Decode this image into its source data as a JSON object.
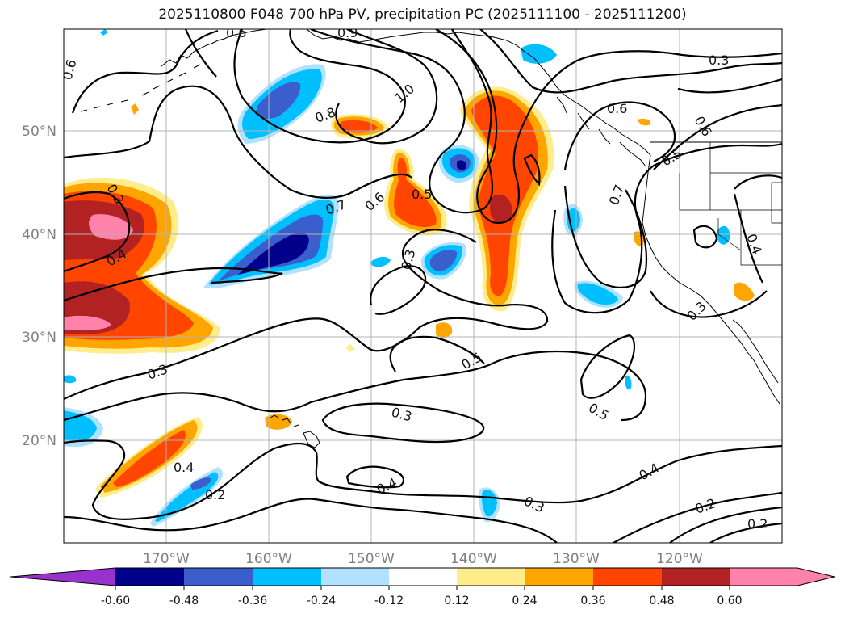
{
  "title": "2025110800 F048 700 hPa PV, precipitation PC (2025111100 - 2025111200)",
  "colors": {
    "grid": "#b4b4b4",
    "tick": "#7f7f7f",
    "contour": "#000000",
    "c_n72": "#9932cc",
    "c_n60": "#00008b",
    "c_n48": "#3a5fcd",
    "c_n36": "#00bfff",
    "c_n24": "#b0e2ff",
    "c_n12": "#ffffff",
    "c_p12": "#ffec8b",
    "c_p24": "#ffa500",
    "c_p36": "#ff4500",
    "c_p48": "#b22222",
    "c_p60": "#ff82ab"
  },
  "map": {
    "lon_labels": [
      "170°W",
      "160°W",
      "150°W",
      "140°W",
      "130°W",
      "120°W"
    ],
    "lat_labels": [
      "50°N",
      "40°N",
      "30°N",
      "20°N"
    ]
  },
  "contour_labels": [
    "0.6",
    "0.9",
    "0.3",
    "0.6",
    "1.0",
    "0.8",
    "0.6",
    "0.6",
    "0.5",
    "0.3",
    "0.7",
    "0.6",
    "0.5",
    "0.7",
    "0.4",
    "0.3",
    "0.4",
    "0.3",
    "0.5",
    "0.5",
    "0.3",
    "0.4",
    "0.4",
    "0.2",
    "0.3",
    "0.4",
    "0.2",
    "0.2",
    "0.3"
  ],
  "colorbar": {
    "tick_labels": [
      "-0.60",
      "-0.48",
      "-0.36",
      "-0.24",
      "-0.12",
      "0.12",
      "0.24",
      "0.36",
      "0.48",
      "0.60"
    ]
  }
}
